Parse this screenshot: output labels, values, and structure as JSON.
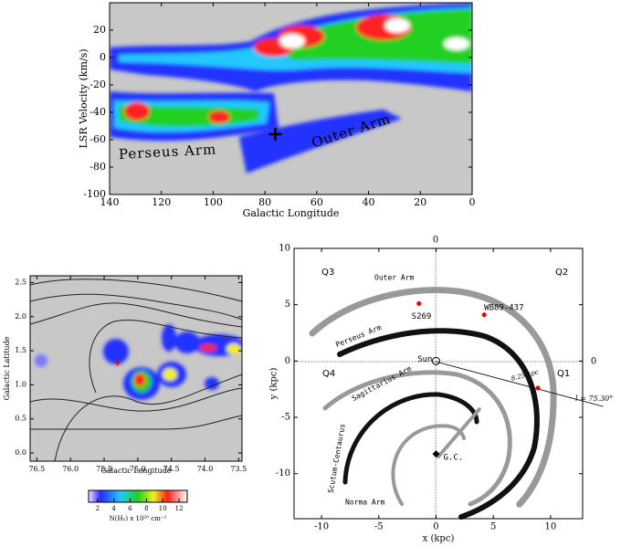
{
  "chart_data": [
    {
      "type": "heatmap",
      "xlabel": "Galactic Longitude",
      "ylabel": "LSR Velocity (km/s)",
      "xlim": [
        140,
        0
      ],
      "ylim": [
        -100,
        40
      ],
      "xticks": [
        140,
        120,
        100,
        80,
        60,
        40,
        20,
        0
      ],
      "yticks": [
        20,
        0,
        -20,
        -40,
        -60,
        -80,
        -100
      ],
      "annotations": [
        "Perseus Arm",
        "Outer Arm"
      ],
      "marker": {
        "x": 76,
        "y": -56
      }
    },
    {
      "type": "heatmap",
      "xlabel": "Galactic Longitude",
      "ylabel": "Galactic Latitude",
      "xlim": [
        76.6,
        73.45
      ],
      "ylim": [
        -0.12,
        2.6
      ],
      "xticks": [
        76.5,
        {
          "value": 76,
          "label": "76.0"
        },
        75.5,
        {
          "value": 75,
          "label": "75.0"
        },
        74.5,
        {
          "value": 74,
          "label": "74.0"
        },
        73.5
      ],
      "yticks": [
        {
          "value": 0,
          "label": "0.0"
        },
        0.5,
        {
          "value": 1,
          "label": "1.0"
        },
        1.5,
        {
          "value": 2,
          "label": "2.0"
        },
        2.5
      ],
      "marker": {
        "x": 75.3,
        "y": 1.32
      },
      "colorbar": {
        "label": "N(H₂) x 10²⁰ cm⁻²",
        "lim": [
          0.9,
          13
        ],
        "ticks": [
          2,
          4,
          6,
          8,
          10,
          12
        ]
      }
    },
    {
      "type": "scatter",
      "xlabel": "x (kpc)",
      "ylabel": "y (kpc)",
      "xlim": [
        -12.4,
        12.8
      ],
      "ylim": [
        -14,
        10
      ],
      "xticks": [
        -10,
        -5,
        0,
        5,
        10
      ],
      "yticks": [
        -10,
        -5,
        0,
        5,
        10
      ],
      "quadrants": [
        "Q1",
        "Q2",
        "Q3",
        "Q4"
      ],
      "reference_labels": [
        "0",
        "0"
      ],
      "arms": [
        "Outer Arm",
        "Perseus Arm",
        "Sagittarius Arm",
        "Scutum-Centaurus",
        "Norma Arm"
      ],
      "points": {
        "x": [
          0,
          0,
          -1.5,
          4.2,
          8.9
        ],
        "y": [
          0,
          -8.25,
          5.1,
          4.1,
          -2.4
        ],
        "labels": [
          "Sun",
          "G.C.",
          "S269",
          "WB89-437",
          null
        ]
      },
      "distance_label": "8.25 kpc",
      "sightline_label": "l = 75.30°"
    }
  ]
}
